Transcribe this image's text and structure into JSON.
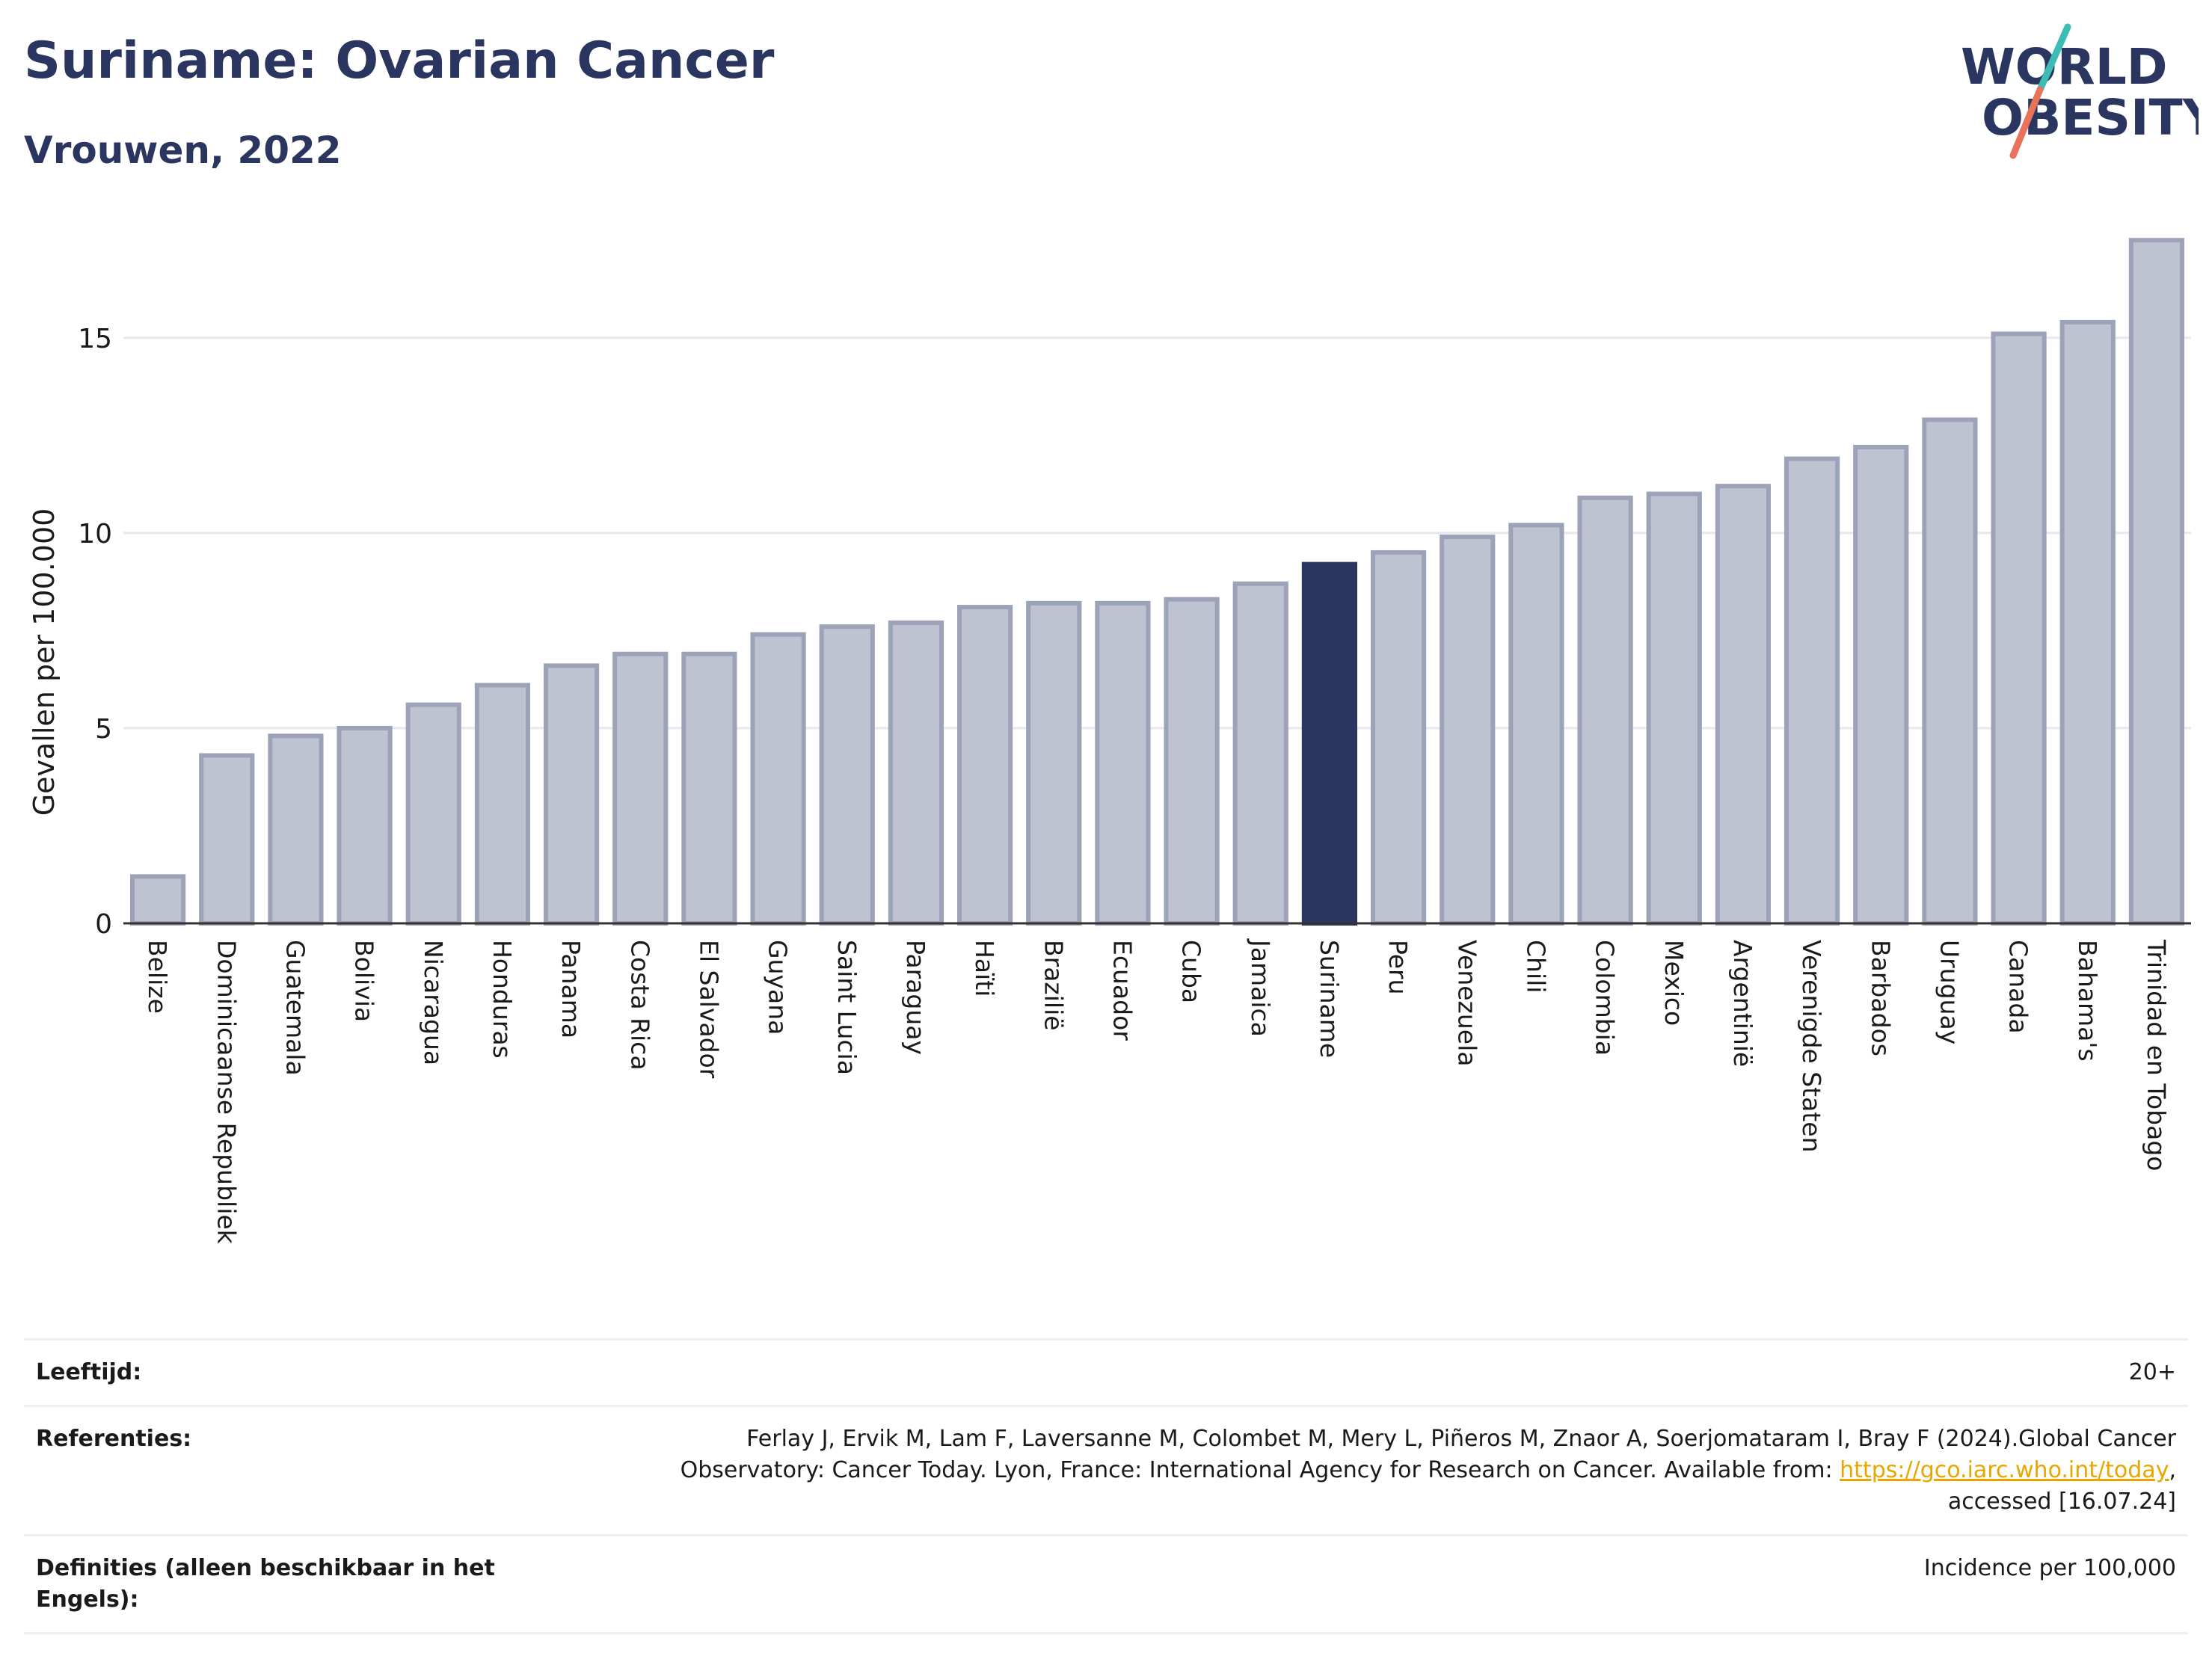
{
  "header": {
    "title": "Suriname: Ovarian Cancer",
    "subtitle": "Vrouwen, 2022"
  },
  "logo": {
    "line1": "WORLD",
    "line2": "OBESITY",
    "colors": {
      "text": "#2a3560",
      "slash_top": "#3cbcb4",
      "slash_bottom": "#e8735a"
    }
  },
  "colors": {
    "bar_default": "#bfc3d1",
    "bar_border": "#9ca2b8",
    "bar_highlight": "#2a3560",
    "grid": "#e6e8ee",
    "axis": "#333333"
  },
  "chart_data": {
    "type": "bar",
    "ylabel": "Gevallen per 100.000",
    "xlabel": "",
    "ylim": [
      0,
      17.6
    ],
    "yticks": [
      0,
      5,
      10,
      15
    ],
    "grid": true,
    "highlight": "Suriname",
    "categories": [
      "Belize",
      "Dominicaanse Republiek",
      "Guatemala",
      "Bolivia",
      "Nicaragua",
      "Honduras",
      "Panama",
      "Costa Rica",
      "El Salvador",
      "Guyana",
      "Saint Lucia",
      "Paraguay",
      "Haïti",
      "Brazilië",
      "Ecuador",
      "Cuba",
      "Jamaica",
      "Suriname",
      "Peru",
      "Venezuela",
      "Chili",
      "Colombia",
      "Mexico",
      "Argentinië",
      "Verenigde Staten",
      "Barbados",
      "Uruguay",
      "Canada",
      "Bahama's",
      "Trinidad en Tobago"
    ],
    "values": [
      1.2,
      4.3,
      4.8,
      5.0,
      5.6,
      6.1,
      6.6,
      6.9,
      6.9,
      7.4,
      7.6,
      7.7,
      8.1,
      8.2,
      8.2,
      8.3,
      8.7,
      9.2,
      9.5,
      9.9,
      10.2,
      10.9,
      11.0,
      11.2,
      11.9,
      12.2,
      12.9,
      15.1,
      15.4,
      17.5
    ]
  },
  "info": {
    "age_label": "Leeftijd:",
    "age_value": "20+",
    "ref_label": "Referenties:",
    "ref_line1": "Ferlay J, Ervik M, Lam F, Laversanne M, Colombet M, Mery L, Piñeros M, Znaor A, Soerjomataram I, Bray F (2024).Global Cancer",
    "ref_line2_prefix": "Observatory: Cancer Today. Lyon, France: International Agency for Research on Cancer. Available from: ",
    "ref_link": "https://gco.iarc.who.int/today",
    "ref_line2_suffix": ",",
    "ref_line3": "accessed [16.07.24]",
    "def_label": "Definities (alleen beschikbaar in het Engels):",
    "def_value": "Incidence per 100,000"
  }
}
